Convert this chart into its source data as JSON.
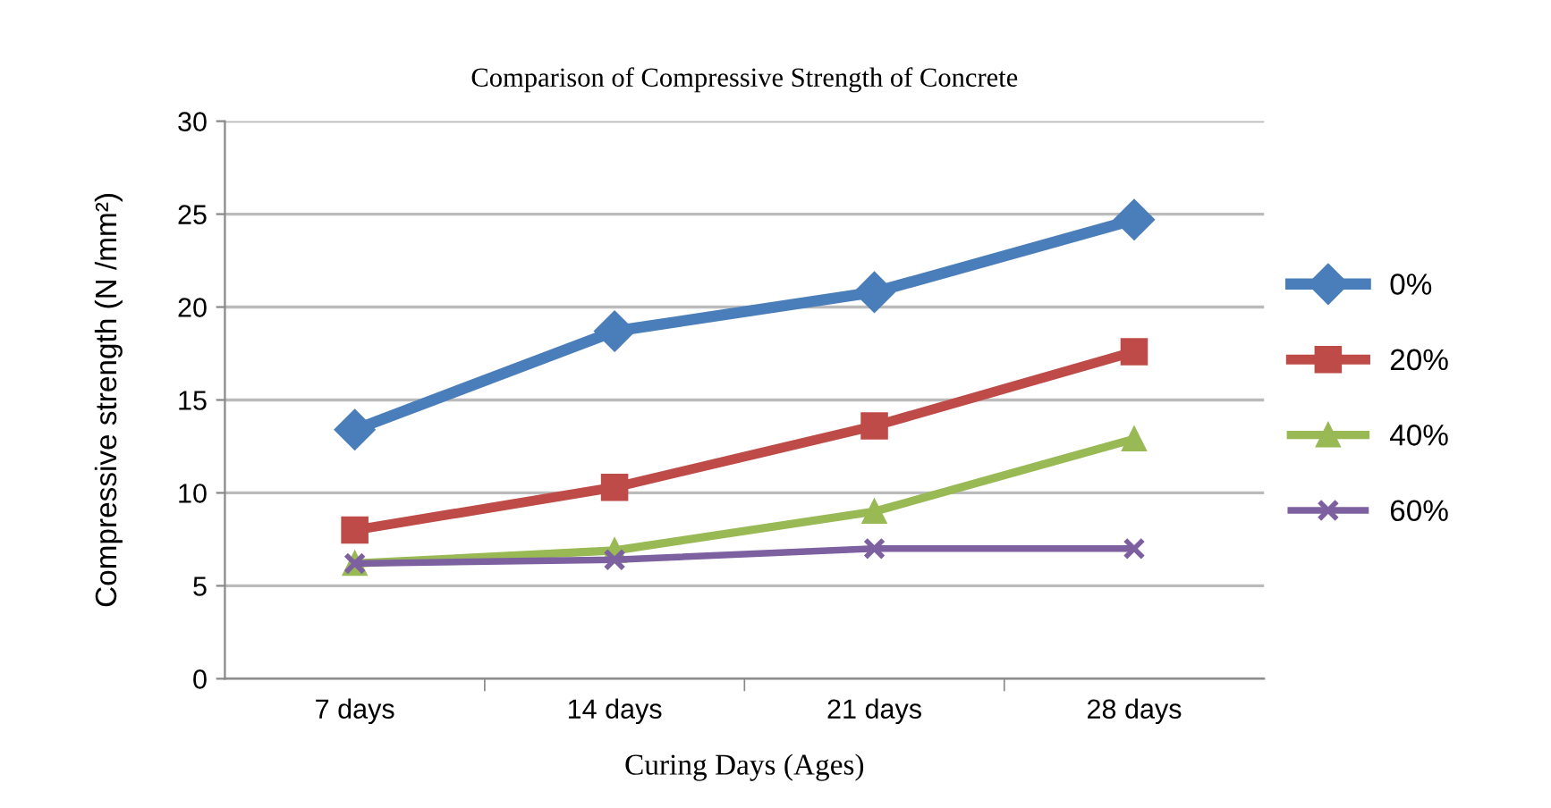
{
  "chart_data": {
    "type": "line",
    "title": "Comparison of Compressive Strength of Concrete",
    "xlabel": "Curing Days (Ages)",
    "ylabel": "Compressive strength (N /mm²)",
    "categories": [
      "7 days",
      "14 days",
      "21 days",
      "28 days"
    ],
    "series": [
      {
        "name": "0%",
        "color": "#4a7ebb",
        "marker": "diamond",
        "values": [
          13.4,
          18.7,
          20.8,
          24.7
        ]
      },
      {
        "name": "20%",
        "color": "#be4b48",
        "marker": "square",
        "values": [
          8.0,
          10.3,
          13.6,
          17.6
        ]
      },
      {
        "name": "40%",
        "color": "#98b954",
        "marker": "triangle",
        "values": [
          6.2,
          6.9,
          9.0,
          12.9
        ]
      },
      {
        "name": "60%",
        "color": "#7d60a0",
        "marker": "cross",
        "values": [
          6.2,
          6.4,
          7.0,
          7.0
        ]
      }
    ],
    "ylim": [
      0,
      30
    ],
    "yticks": [
      0,
      5,
      10,
      15,
      20,
      25,
      30
    ],
    "grid": "y",
    "legend": "right",
    "line_style": "solid"
  }
}
